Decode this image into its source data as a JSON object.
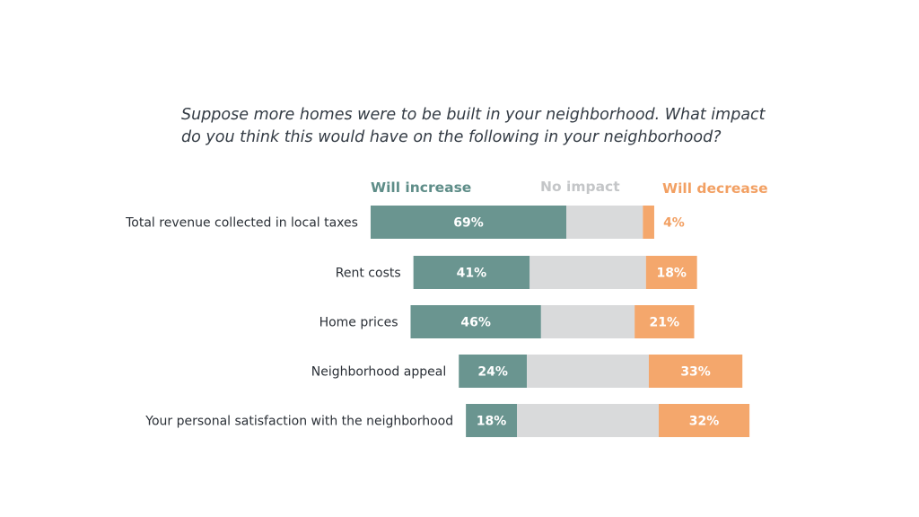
{
  "title_lines": [
    "Suppose more homes were to be built in your neighborhood. What impact",
    "do you think this would have on the following in your neighborhood?"
  ],
  "legend": {
    "increase": "Will increase",
    "neutral": "No impact",
    "decrease": "Will decrease"
  },
  "colors": {
    "increase": "#6a9590",
    "neutral": "#d9dadb",
    "decrease": "#f4a76c",
    "increase_text": "#5e8d88",
    "neutral_text": "#c4c6c8",
    "decrease_text": "#f2a063",
    "category_text": "#2a2f36",
    "title_text": "#333b44"
  },
  "chart_data": {
    "type": "bar",
    "orientation": "horizontal",
    "stacked": "diverging",
    "title": "Suppose more homes were to be built in your neighborhood. What impact do you think this would have on the following in your neighborhood?",
    "categories": [
      "Total revenue collected in local taxes",
      "Rent costs",
      "Home prices",
      "Neighborhood appeal",
      "Your personal satisfaction with the neighborhood"
    ],
    "series": [
      {
        "name": "Will increase",
        "values": [
          69,
          41,
          46,
          24,
          18
        ],
        "labels": [
          "69%",
          "41%",
          "46%",
          "24%",
          "18%"
        ]
      },
      {
        "name": "No impact",
        "values": [
          27,
          41,
          33,
          43,
          50
        ]
      },
      {
        "name": "Will decrease",
        "values": [
          4,
          18,
          21,
          33,
          32
        ],
        "labels": [
          "4%",
          "18%",
          "21%",
          "33%",
          "32%"
        ]
      }
    ],
    "legend_position": "top",
    "grid": false
  }
}
